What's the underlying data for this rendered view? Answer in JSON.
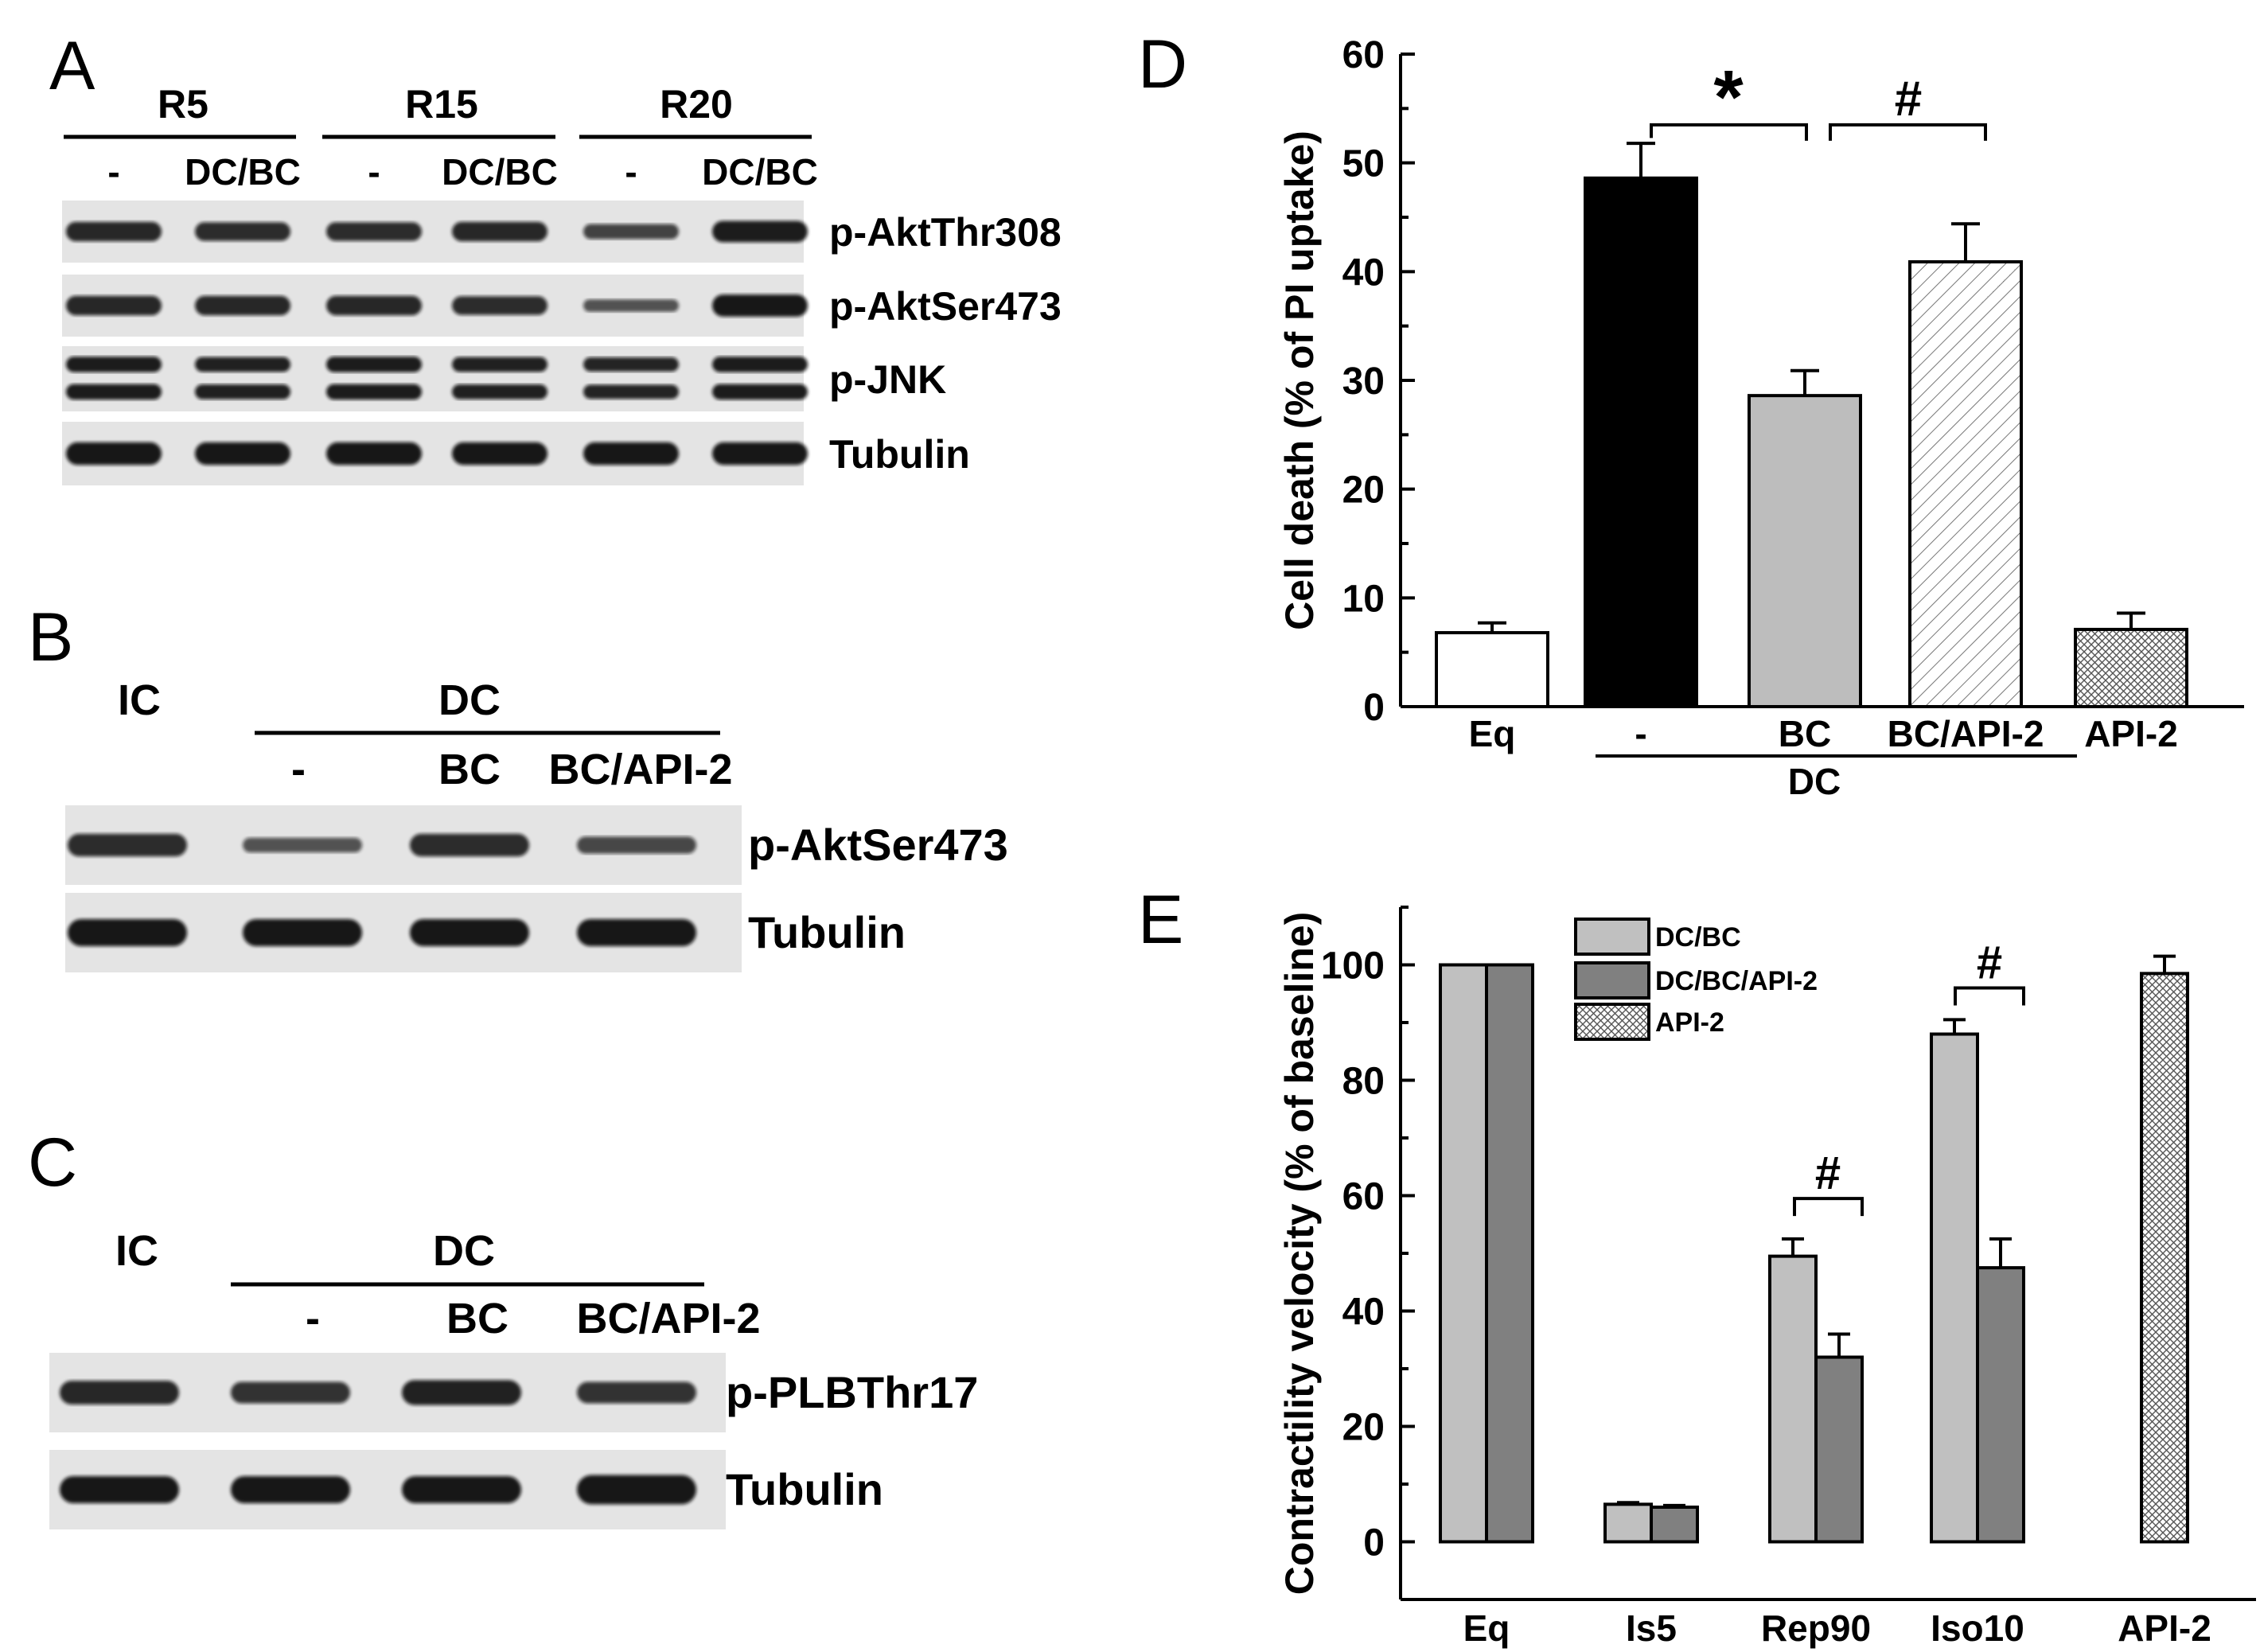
{
  "panels": {
    "A": {
      "letter": "A",
      "groups": [
        "R5",
        "R15",
        "R20"
      ],
      "lanes": [
        "-",
        "DC/BC",
        "-",
        "DC/BC",
        "-",
        "DC/BC"
      ],
      "rows": [
        {
          "label": "p-AktThr308",
          "intensity": [
            0.85,
            0.8,
            0.8,
            0.85,
            0.6,
            0.95
          ]
        },
        {
          "label": "p-AktSer473",
          "intensity": [
            0.85,
            0.85,
            0.85,
            0.8,
            0.45,
            1.0
          ]
        },
        {
          "label": "p-JNK",
          "intensity": [
            0.95,
            0.9,
            0.95,
            0.9,
            0.85,
            0.95
          ]
        },
        {
          "label": "Tubulin",
          "intensity": [
            1.0,
            1.0,
            1.0,
            1.0,
            1.0,
            1.0
          ]
        }
      ]
    },
    "B": {
      "letter": "B",
      "control": "IC",
      "group": "DC",
      "lanes": [
        "-",
        "BC",
        "BC/API-2"
      ],
      "rows": [
        {
          "label": "p-AktSer473",
          "intensity": [
            0.8,
            0.45,
            0.8,
            0.55
          ]
        },
        {
          "label": "Tubulin",
          "intensity": [
            1.0,
            1.0,
            1.0,
            1.0
          ]
        }
      ]
    },
    "C": {
      "letter": "C",
      "control": "IC",
      "group": "DC",
      "lanes": [
        "-",
        "BC",
        "BC/API-2"
      ],
      "rows": [
        {
          "label": "p-PLBThr17",
          "intensity": [
            0.85,
            0.75,
            0.9,
            0.75
          ]
        },
        {
          "label": "Tubulin",
          "intensity": [
            1.0,
            1.0,
            1.0,
            1.1
          ]
        }
      ]
    }
  },
  "chart_data": [
    {
      "panel": "D",
      "type": "bar",
      "ylabel": "Cell death (% of PI uptake)",
      "ylim": [
        0,
        60
      ],
      "yticks": [
        "0",
        "10",
        "20",
        "30",
        "40",
        "50",
        "60"
      ],
      "categories": [
        "Eq",
        "-",
        "BC",
        "BC/API-2",
        "API-2"
      ],
      "group_label": "DC",
      "values": [
        6.8,
        48.6,
        28.6,
        40.9,
        7.1
      ],
      "errors": [
        0.9,
        3.2,
        2.3,
        3.5,
        1.5
      ],
      "fills": [
        "white",
        "black",
        "gray",
        "hatch",
        "crosshatch"
      ],
      "annotations": [
        "*",
        "#"
      ]
    },
    {
      "panel": "E",
      "type": "bar",
      "ylabel": "Contractility velocity (% of baseline)",
      "ylim": [
        -10,
        110
      ],
      "yticks": [
        "0",
        "20",
        "40",
        "60",
        "80",
        "100"
      ],
      "categories": [
        "Eq",
        "Is5",
        "Rep90",
        "Iso10",
        "API-2"
      ],
      "legend_position": "top",
      "series": [
        {
          "name": "DC/BC",
          "values": [
            100,
            6.5,
            49.5,
            88,
            null
          ],
          "errors": [
            0,
            0.3,
            3.0,
            2.5,
            null
          ]
        },
        {
          "name": "DC/BC/API-2",
          "values": [
            100,
            6.0,
            32,
            47.5,
            null
          ],
          "errors": [
            0,
            0.3,
            4.0,
            5.0,
            null
          ]
        },
        {
          "name": "API-2",
          "values": [
            null,
            null,
            null,
            null,
            98.5
          ],
          "errors": [
            null,
            null,
            null,
            null,
            3.0
          ]
        }
      ],
      "annotations": [
        "#",
        "#"
      ]
    }
  ]
}
